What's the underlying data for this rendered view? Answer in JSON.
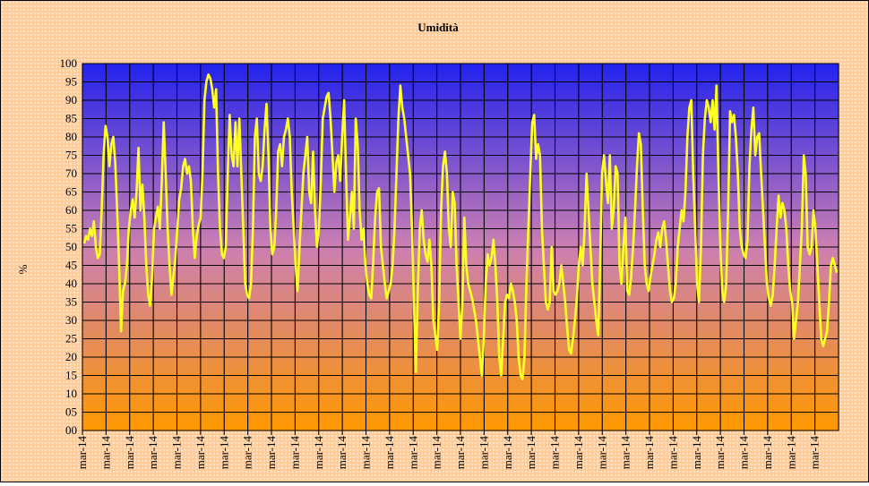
{
  "chart_data": {
    "type": "line",
    "title": "Umidità",
    "ylabel": "%",
    "xlabel": "",
    "ylim": [
      0,
      100
    ],
    "y_tick_step": 5,
    "y_tick_labels": [
      "00",
      "05",
      "10",
      "15",
      "20",
      "25",
      "30",
      "35",
      "40",
      "45",
      "50",
      "55",
      "60",
      "65",
      "70",
      "75",
      "80",
      "85",
      "90",
      "95",
      "100"
    ],
    "x_tick_labels": [
      "mar-14",
      "mar-14",
      "mar-14",
      "mar-14",
      "mar-14",
      "mar-14",
      "mar-14",
      "mar-14",
      "mar-14",
      "mar-14",
      "mar-14",
      "mar-14",
      "mar-14",
      "mar-14",
      "mar-14",
      "mar-14",
      "mar-14",
      "mar-14",
      "mar-14",
      "mar-14",
      "mar-14",
      "mar-14",
      "mar-14",
      "mar-14",
      "mar-14",
      "mar-14",
      "mar-14",
      "mar-14",
      "mar-14",
      "mar-14",
      "mar-14",
      "mar-14"
    ],
    "grid": true,
    "legend": "none",
    "colors": {
      "line": "#ffff22",
      "plot_top": "#2222ee",
      "plot_middle": "#cc7fb2",
      "plot_bottom": "#ff9900",
      "frame_background": "#ffcc99"
    },
    "series": [
      {
        "values": [
          51,
          53,
          52,
          55,
          53,
          57,
          50,
          47,
          48,
          60,
          75,
          83,
          80,
          72,
          78,
          80,
          73,
          60,
          45,
          27,
          38,
          40,
          45,
          55,
          60,
          63,
          58,
          65,
          77,
          60,
          67,
          58,
          45,
          37,
          34,
          42,
          55,
          58,
          61,
          55,
          68,
          84,
          70,
          55,
          45,
          37,
          42,
          47,
          55,
          63,
          66,
          72,
          74,
          70,
          72,
          68,
          55,
          47,
          53,
          56,
          58,
          70,
          90,
          95,
          97,
          96,
          93,
          88,
          93,
          70,
          55,
          48,
          47,
          50,
          70,
          86,
          75,
          72,
          84,
          72,
          85,
          70,
          55,
          40,
          37,
          36,
          40,
          55,
          80,
          85,
          70,
          68,
          72,
          82,
          89,
          75,
          55,
          48,
          50,
          60,
          76,
          78,
          72,
          80,
          82,
          85,
          80,
          65,
          55,
          45,
          38,
          50,
          60,
          70,
          75,
          80,
          65,
          62,
          76,
          60,
          50,
          55,
          68,
          85,
          88,
          91,
          92,
          85,
          75,
          65,
          73,
          75,
          68,
          80,
          90,
          70,
          52,
          58,
          65,
          55,
          85,
          78,
          60,
          52,
          55,
          45,
          40,
          37,
          36,
          46,
          58,
          65,
          66,
          50,
          45,
          40,
          36,
          38,
          40,
          45,
          55,
          70,
          85,
          94,
          88,
          85,
          80,
          75,
          70,
          55,
          35,
          16,
          38,
          55,
          60,
          52,
          48,
          46,
          52,
          45,
          30,
          26,
          22,
          35,
          60,
          72,
          76,
          70,
          55,
          50,
          65,
          62,
          45,
          35,
          25,
          35,
          58,
          45,
          40,
          38,
          36,
          33,
          30,
          25,
          20,
          15,
          25,
          40,
          48,
          45,
          47,
          52,
          45,
          35,
          20,
          15,
          25,
          35,
          37,
          36,
          40,
          38,
          35,
          30,
          20,
          15,
          14,
          20,
          40,
          55,
          70,
          84,
          86,
          74,
          78,
          75,
          55,
          45,
          35,
          33,
          35,
          50,
          38,
          37,
          38,
          40,
          45,
          40,
          35,
          28,
          22,
          21,
          25,
          30,
          36,
          45,
          50,
          45,
          55,
          70,
          60,
          50,
          40,
          35,
          30,
          26,
          45,
          70,
          75,
          68,
          62,
          75,
          55,
          60,
          72,
          70,
          45,
          40,
          50,
          58,
          38,
          37,
          42,
          50,
          60,
          72,
          81,
          78,
          60,
          45,
          40,
          38,
          42,
          45,
          48,
          52,
          54,
          50,
          55,
          57,
          52,
          45,
          38,
          35,
          36,
          40,
          50,
          55,
          60,
          57,
          65,
          80,
          88,
          90,
          70,
          55,
          40,
          35,
          50,
          75,
          85,
          90,
          88,
          84,
          90,
          82,
          94,
          70,
          50,
          38,
          35,
          40,
          60,
          87,
          84,
          86,
          80,
          70,
          55,
          50,
          48,
          47,
          52,
          72,
          82,
          88,
          75,
          80,
          81,
          70,
          60,
          50,
          40,
          36,
          34,
          37,
          45,
          55,
          64,
          58,
          62,
          60,
          55,
          45,
          38,
          35,
          25,
          30,
          35,
          45,
          55,
          75,
          70,
          50,
          48,
          50,
          60,
          55,
          45,
          35,
          25,
          23,
          25,
          27,
          35,
          45,
          47,
          45,
          43
        ]
      }
    ]
  }
}
